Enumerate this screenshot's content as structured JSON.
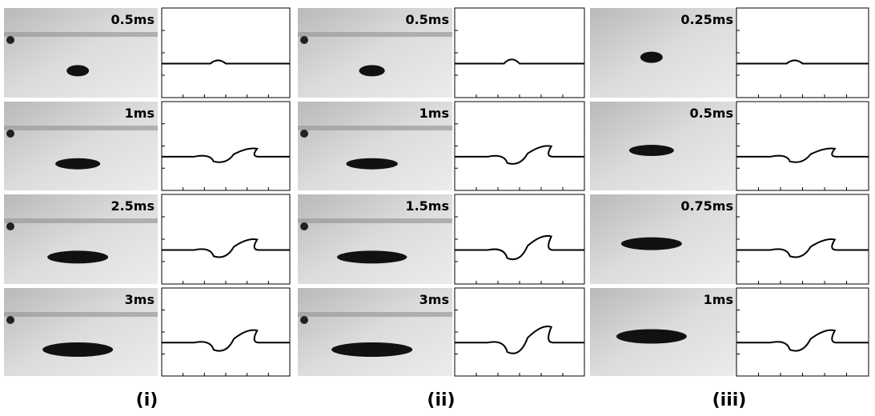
{
  "columns": [
    {
      "label": "(i)",
      "times": [
        "0.5ms",
        "1ms",
        "2.5ms",
        "3ms"
      ]
    },
    {
      "label": "(ii)",
      "times": [
        "0.5ms",
        "1ms",
        "1.5ms",
        "3ms"
      ]
    },
    {
      "label": "(iii)",
      "times": [
        "0.25ms",
        "0.5ms",
        "0.75ms",
        "1ms"
      ]
    }
  ]
}
